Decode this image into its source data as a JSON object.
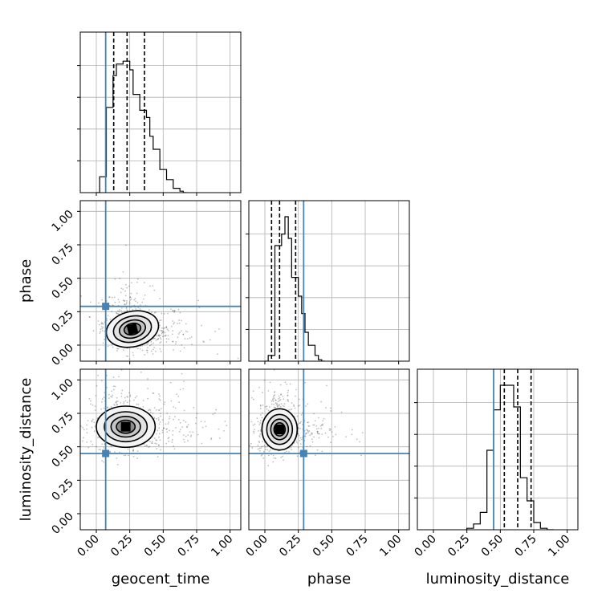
{
  "chart_data": {
    "type": "corner",
    "parameters": [
      "geocent_time",
      "phase",
      "luminosity_distance"
    ],
    "truths": [
      0.07,
      0.29,
      0.45
    ],
    "truth_color": "#4682b4",
    "range": [
      -0.12,
      1.08
    ],
    "tick_values": [
      0.0,
      0.25,
      0.5,
      0.75,
      1.0
    ],
    "tick_labels": [
      "0.00",
      "0.25",
      "0.50",
      "0.75",
      "1.00"
    ],
    "grid": true,
    "histograms": [
      {
        "parameter": "geocent_time",
        "bin_edges": [
          0.0,
          0.025,
          0.05,
          0.075,
          0.1,
          0.125,
          0.15,
          0.175,
          0.2,
          0.225,
          0.25,
          0.275,
          0.3,
          0.325,
          0.35,
          0.375,
          0.4,
          0.425,
          0.45,
          0.475,
          0.5,
          0.525,
          0.55,
          0.575,
          0.6,
          0.625,
          0.65,
          0.675
        ],
        "counts": [
          0.0,
          0.11,
          0.11,
          0.59,
          0.59,
          0.81,
          0.89,
          0.89,
          0.91,
          0.91,
          0.85,
          0.68,
          0.68,
          0.57,
          0.57,
          0.52,
          0.39,
          0.3,
          0.3,
          0.16,
          0.16,
          0.09,
          0.09,
          0.03,
          0.03,
          0.01,
          0.0
        ],
        "quantiles": [
          0.13,
          0.23,
          0.36
        ]
      },
      {
        "parameter": "phase",
        "bin_edges": [
          0.0,
          0.025,
          0.05,
          0.075,
          0.1,
          0.125,
          0.15,
          0.175,
          0.2,
          0.225,
          0.25,
          0.275,
          0.3,
          0.325,
          0.35,
          0.375,
          0.4,
          0.425,
          0.45
        ],
        "counts": [
          0.0,
          0.04,
          0.04,
          0.8,
          0.8,
          0.88,
          1.0,
          0.85,
          0.58,
          0.58,
          0.45,
          0.33,
          0.2,
          0.11,
          0.11,
          0.04,
          0.01,
          0.0
        ],
        "quantiles": [
          0.05,
          0.11,
          0.23
        ]
      },
      {
        "parameter": "luminosity_distance",
        "bin_edges": [
          0.25,
          0.3,
          0.35,
          0.4,
          0.45,
          0.5,
          0.55,
          0.6,
          0.65,
          0.7,
          0.75,
          0.8,
          0.85,
          0.9
        ],
        "counts": [
          0.01,
          0.04,
          0.12,
          0.55,
          0.83,
          1.0,
          1.0,
          0.85,
          0.36,
          0.2,
          0.05,
          0.01,
          0.0
        ],
        "quantiles": [
          0.53,
          0.63,
          0.73
        ]
      }
    ],
    "joint_panels": [
      {
        "x": "geocent_time",
        "y": "phase",
        "peak": [
          0.27,
          0.12
        ],
        "sigma": [
          0.09,
          0.06
        ],
        "spread": [
          0.11,
          0.08
        ],
        "tilt": -0.55
      },
      {
        "x": "geocent_time",
        "y": "luminosity_distance",
        "peak": [
          0.22,
          0.65
        ],
        "sigma": [
          0.1,
          0.07
        ],
        "spread": [
          0.13,
          0.09
        ],
        "tilt": 0.0
      },
      {
        "x": "phase",
        "y": "luminosity_distance",
        "peak": [
          0.11,
          0.63
        ],
        "sigma": [
          0.06,
          0.07
        ],
        "spread": [
          0.08,
          0.09
        ],
        "tilt": 0.0
      }
    ]
  }
}
